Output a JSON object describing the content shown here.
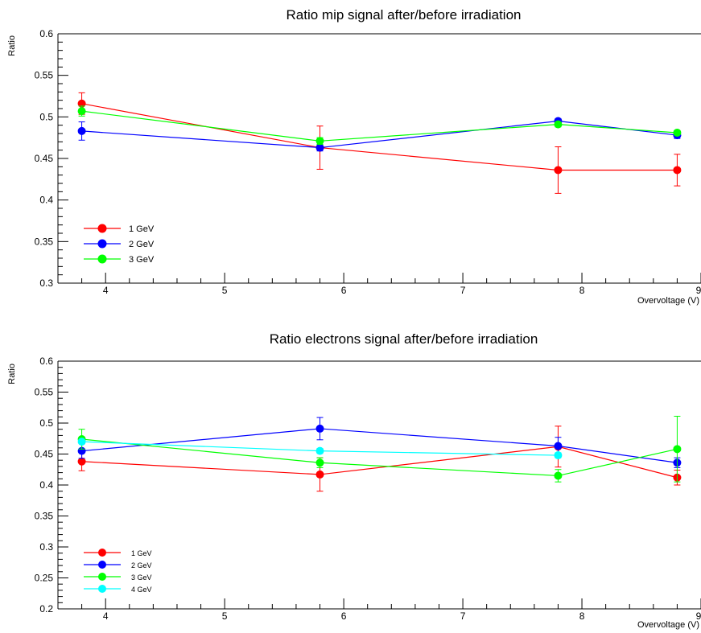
{
  "chart_data": [
    {
      "type": "line",
      "title": "Ratio mip signal after/before irradiation",
      "xlabel": "Overvoltage (V)",
      "ylabel": "Ratio",
      "xlim": [
        3.6,
        9.0
      ],
      "ylim": [
        0.3,
        0.6
      ],
      "x_ticks": [
        4,
        5,
        6,
        7,
        8,
        9
      ],
      "y_ticks": [
        0.3,
        0.35,
        0.4,
        0.45,
        0.5,
        0.55,
        0.6
      ],
      "x_tick_labels": [
        "4",
        "5",
        "6",
        "7",
        "8",
        "9"
      ],
      "y_tick_labels": [
        "0.3",
        "0.35",
        "0.4",
        "0.45",
        "0.5",
        "0.55",
        "0.6"
      ],
      "grid": false,
      "legend_position": "bottom-left",
      "series": [
        {
          "name": "1 GeV",
          "color": "#ff0000",
          "x": [
            3.8,
            5.8,
            7.8,
            8.8
          ],
          "y": [
            0.516,
            0.463,
            0.436,
            0.436
          ],
          "err": [
            0.013,
            0.026,
            0.028,
            0.019
          ]
        },
        {
          "name": "2 GeV",
          "color": "#0000ff",
          "x": [
            3.8,
            5.8,
            7.8,
            8.8
          ],
          "y": [
            0.483,
            0.463,
            0.495,
            0.478
          ],
          "err": [
            0.011,
            0.004,
            0.003,
            0.004
          ]
        },
        {
          "name": "3 GeV",
          "color": "#00ff00",
          "x": [
            3.8,
            5.8,
            7.8,
            8.8
          ],
          "y": [
            0.507,
            0.471,
            0.491,
            0.481
          ],
          "err": [
            0.006,
            0.004,
            0.003,
            0.002
          ]
        }
      ]
    },
    {
      "type": "line",
      "title": "Ratio electrons signal after/before irradiation",
      "xlabel": "Overvoltage (V)",
      "ylabel": "Ratio",
      "xlim": [
        3.6,
        9.0
      ],
      "ylim": [
        0.2,
        0.6
      ],
      "x_ticks": [
        4,
        5,
        6,
        7,
        8,
        9
      ],
      "y_ticks": [
        0.2,
        0.25,
        0.3,
        0.35,
        0.4,
        0.45,
        0.5,
        0.55,
        0.6
      ],
      "x_tick_labels": [
        "4",
        "5",
        "6",
        "7",
        "8",
        "9"
      ],
      "y_tick_labels": [
        "0.2",
        "0.25",
        "0.3",
        "0.35",
        "0.4",
        "0.45",
        "0.5",
        "0.55",
        "0.6"
      ],
      "grid": false,
      "legend_position": "bottom-left",
      "series": [
        {
          "name": "1 GeV",
          "color": "#ff0000",
          "x": [
            3.8,
            5.8,
            7.8,
            8.8
          ],
          "y": [
            0.438,
            0.417,
            0.462,
            0.412
          ],
          "err": [
            0.015,
            0.027,
            0.033,
            0.012
          ]
        },
        {
          "name": "2 GeV",
          "color": "#0000ff",
          "x": [
            3.8,
            5.8,
            7.8,
            8.8
          ],
          "y": [
            0.455,
            0.491,
            0.463,
            0.436
          ],
          "err": [
            0.012,
            0.018,
            0.014,
            0.008
          ]
        },
        {
          "name": "3 GeV",
          "color": "#00ff00",
          "x": [
            3.8,
            5.8,
            7.8,
            8.8
          ],
          "y": [
            0.474,
            0.436,
            0.415,
            0.458
          ],
          "err": [
            0.016,
            0.008,
            0.01,
            0.053
          ]
        },
        {
          "name": "4 GeV",
          "color": "#00ffff",
          "x": [
            3.8,
            5.8,
            7.8
          ],
          "y": [
            0.47,
            0.455,
            0.448
          ],
          "err": [
            0.003,
            0.004,
            0.004
          ]
        }
      ]
    }
  ]
}
